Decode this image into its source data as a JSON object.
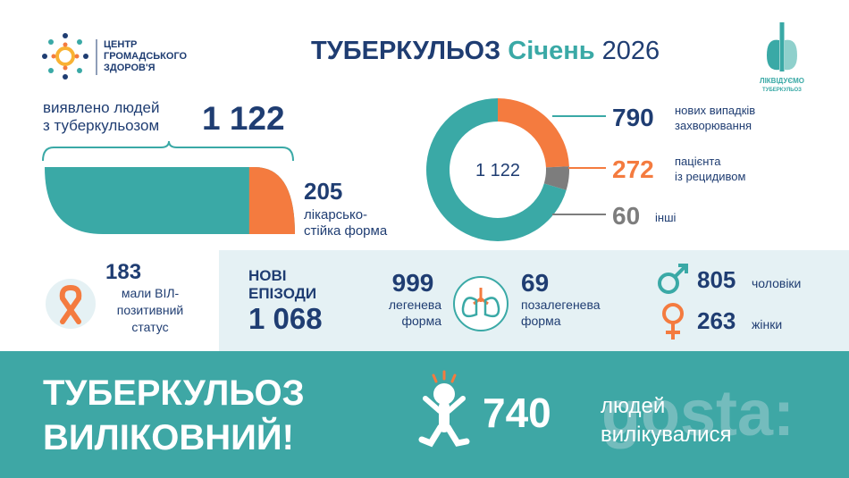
{
  "header": {
    "org": [
      "ЦЕНТР",
      "ГРОМАДСЬКОГО",
      "ЗДОРОВ'Я"
    ],
    "title": [
      "ТУБЕРКУЛЬОЗ",
      "Січень",
      "2026"
    ],
    "badge": [
      "ЛІКВІДУЄМО",
      "ТУБЕРКУЛЬОЗ"
    ]
  },
  "detected": {
    "label": [
      "виявлено людей",
      "з туберкульозом"
    ],
    "total": {
      "value": 1122,
      "label": "1 122"
    },
    "resistant": {
      "value": 205,
      "label": [
        "лікарсько-",
        "стійка форма"
      ]
    }
  },
  "donut": {
    "center": {
      "value": 1122,
      "label": "1 122"
    },
    "segments": [
      {
        "value": 790,
        "label": [
          "нових випадків",
          "захворювання"
        ],
        "color": "#3aa9a6"
      },
      {
        "value": 272,
        "label": [
          "пацієнта",
          "із рецидивом"
        ],
        "color": "#f47b3f"
      },
      {
        "value": 60,
        "label": [
          "інші"
        ],
        "color": "#7d7d7d"
      }
    ]
  },
  "hiv": {
    "value": 183,
    "label": [
      "мали ВІЛ-",
      "позитивний",
      "статус"
    ]
  },
  "new_episodes": {
    "label": [
      "НОВІ",
      "ЕПІЗОДИ"
    ],
    "total": {
      "value": 1068,
      "label": "1 068"
    },
    "pulmonary": {
      "value": 999,
      "label": [
        "легенева",
        "форма"
      ]
    },
    "extrapulmonary": {
      "value": 69,
      "label": [
        "позалегенева",
        "форма"
      ]
    }
  },
  "sex": {
    "male": {
      "value": 805,
      "label": "чоловіки"
    },
    "female": {
      "value": 263,
      "label": "жінки"
    }
  },
  "footer": {
    "slogan": [
      "ТУБЕРКУЛЬОЗ",
      "ВИЛІКОВНИЙ!"
    ],
    "cured": {
      "value": 740,
      "label": [
        "людей",
        "вилікувалися"
      ]
    }
  },
  "watermark": "gosta:"
}
